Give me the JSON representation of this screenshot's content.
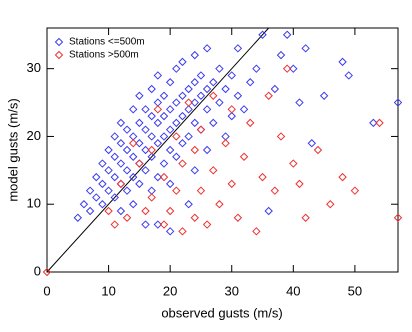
{
  "chart_data": {
    "type": "scatter",
    "xlabel": "observed gusts (m/s)",
    "ylabel": "model gusts (m/s)",
    "xlim": [
      0,
      57
    ],
    "ylim": [
      0,
      36
    ],
    "xticks": [
      0,
      10,
      20,
      30,
      40,
      50
    ],
    "yticks": [
      0,
      10,
      20,
      30
    ],
    "legend": "upper left",
    "series": [
      {
        "name": "Stations <=500m",
        "color": "#3b3bf0",
        "x": [
          5,
          6,
          7,
          7,
          8,
          8,
          9,
          9,
          9,
          10,
          10,
          10,
          11,
          11,
          11,
          11,
          12,
          12,
          12,
          12,
          12,
          13,
          13,
          13,
          13,
          14,
          14,
          14,
          14,
          14,
          15,
          15,
          15,
          15,
          15,
          16,
          16,
          16,
          16,
          16,
          17,
          17,
          17,
          17,
          17,
          18,
          18,
          18,
          18,
          18,
          19,
          19,
          19,
          19,
          20,
          20,
          20,
          20,
          20,
          21,
          21,
          21,
          21,
          22,
          22,
          22,
          22,
          23,
          23,
          23,
          24,
          24,
          24,
          24,
          24,
          25,
          25,
          25,
          26,
          26,
          26,
          26,
          27,
          27,
          28,
          28,
          29,
          29,
          30,
          30,
          31,
          31,
          32,
          33,
          34,
          35,
          36,
          37,
          38,
          39,
          40,
          41,
          42,
          43,
          45,
          48,
          49,
          53,
          57,
          18,
          20,
          23
        ],
        "values": [
          8,
          10,
          9,
          12,
          11,
          14,
          10,
          13,
          16,
          12,
          15,
          18,
          11,
          14,
          17,
          20,
          9,
          13,
          16,
          19,
          22,
          12,
          15,
          18,
          21,
          10,
          14,
          17,
          20,
          24,
          13,
          16,
          19,
          22,
          26,
          7,
          15,
          18,
          21,
          24,
          12,
          17,
          20,
          23,
          27,
          14,
          19,
          22,
          25,
          29,
          16,
          20,
          23,
          26,
          13,
          18,
          21,
          24,
          28,
          17,
          22,
          25,
          30,
          19,
          23,
          26,
          31,
          20,
          24,
          27,
          15,
          22,
          25,
          28,
          32,
          21,
          26,
          29,
          18,
          24,
          27,
          33,
          22,
          28,
          25,
          30,
          20,
          27,
          23,
          29,
          26,
          33,
          24,
          28,
          30,
          35,
          9,
          27,
          32,
          35,
          30,
          25,
          33,
          19,
          26,
          31,
          29,
          22,
          25,
          7,
          6,
          10
        ]
      },
      {
        "name": "Stations >500m",
        "color": "#f03030",
        "x": [
          0,
          10,
          11,
          12,
          13,
          14,
          15,
          16,
          17,
          17,
          18,
          19,
          19,
          20,
          21,
          21,
          22,
          22,
          23,
          24,
          24,
          25,
          25,
          26,
          27,
          27,
          28,
          29,
          30,
          30,
          31,
          32,
          33,
          34,
          35,
          36,
          37,
          38,
          39,
          40,
          41,
          42,
          44,
          46,
          48,
          50,
          54,
          57
        ],
        "values": [
          0,
          9,
          7,
          13,
          8,
          19,
          16,
          9,
          18,
          11,
          24,
          7,
          14,
          9,
          20,
          12,
          6,
          16,
          25,
          8,
          18,
          12,
          21,
          7,
          15,
          26,
          10,
          19,
          13,
          24,
          8,
          17,
          22,
          6,
          14,
          26,
          12,
          20,
          30,
          16,
          13,
          8,
          18,
          10,
          14,
          12,
          22,
          8
        ]
      }
    ]
  }
}
